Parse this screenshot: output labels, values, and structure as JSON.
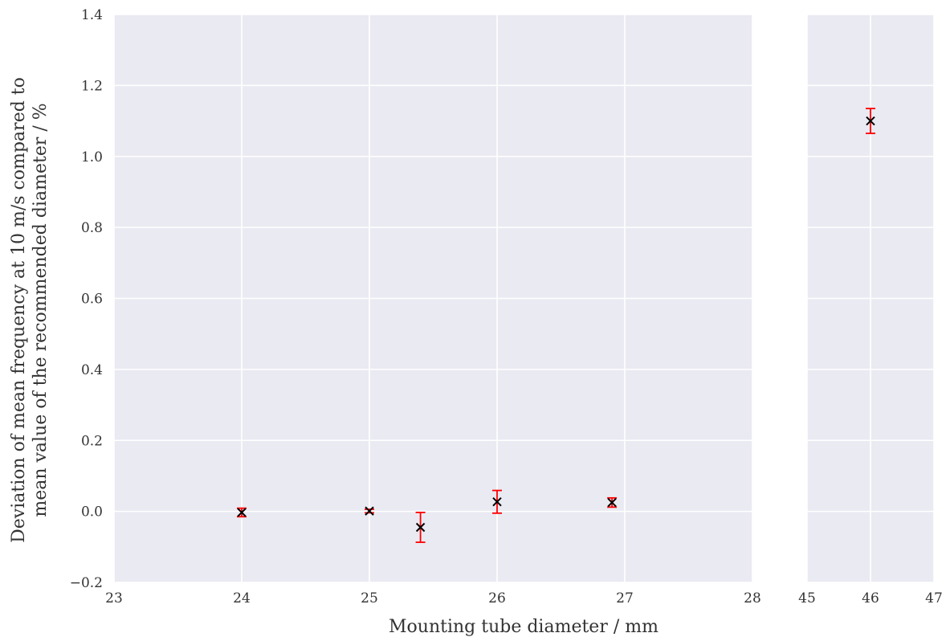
{
  "chart_data": {
    "type": "scatter",
    "title": "",
    "xlabel": "Mounting tube diameter / mm",
    "ylabel_lines": [
      "Deviation of mean frequency at 10 m/s compared to",
      "mean value of the recommended diameter / %"
    ],
    "ylim": [
      -0.2,
      1.4
    ],
    "yticks": [
      -0.2,
      0.0,
      0.2,
      0.4,
      0.6,
      0.8,
      1.0,
      1.2,
      1.4
    ],
    "ytick_labels": [
      "−0.2",
      "0.0",
      "0.2",
      "0.4",
      "0.6",
      "0.8",
      "1.0",
      "1.2",
      "1.4"
    ],
    "panels": [
      {
        "xlim": [
          23,
          28
        ],
        "xticks": [
          23,
          24,
          25,
          26,
          27,
          28
        ],
        "xtick_labels": [
          "23",
          "24",
          "25",
          "26",
          "27",
          "28"
        ],
        "points": [
          {
            "x": 24.0,
            "y": -0.003,
            "err": 0.012
          },
          {
            "x": 25.0,
            "y": 0.001,
            "err": 0.005
          },
          {
            "x": 25.4,
            "y": -0.045,
            "err": 0.042
          },
          {
            "x": 26.0,
            "y": 0.027,
            "err": 0.032
          },
          {
            "x": 26.9,
            "y": 0.025,
            "err": 0.013
          }
        ]
      },
      {
        "xlim": [
          45,
          47
        ],
        "xticks": [
          45,
          46,
          47
        ],
        "xtick_labels": [
          "45",
          "46",
          "47"
        ],
        "points": [
          {
            "x": 46.0,
            "y": 1.1,
            "err": 0.035
          }
        ]
      }
    ],
    "marker": "x",
    "marker_color": "#000000",
    "errorbar_color": "#ff0000",
    "grid": true,
    "grid_color": "#ffffff",
    "background_color": "#eaeaf2"
  }
}
